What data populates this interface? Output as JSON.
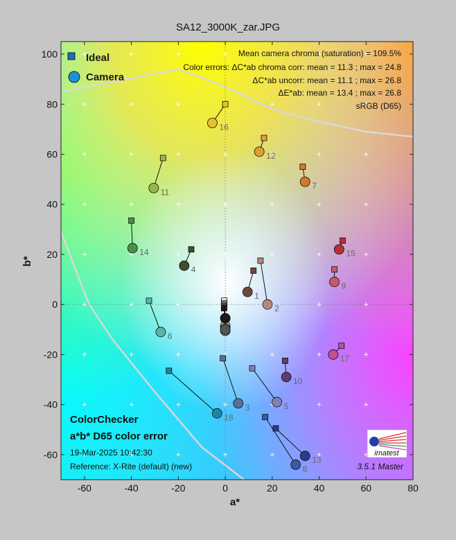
{
  "title": "SA12_3000K_zar.JPG",
  "chart_data": {
    "type": "scatter",
    "xlabel": "a*",
    "ylabel": "b*",
    "xlim": [
      -70,
      80
    ],
    "ylim": [
      -70,
      105
    ],
    "xticks": [
      -60,
      -40,
      -20,
      0,
      20,
      40,
      60,
      80
    ],
    "yticks": [
      -60,
      -40,
      -20,
      0,
      20,
      40,
      60,
      80,
      100
    ],
    "grid": true,
    "legend": [
      {
        "name": "Ideal",
        "marker": "square",
        "color": "#1f6fbf"
      },
      {
        "name": "Camera",
        "marker": "circle",
        "color": "#1f8fd8"
      }
    ],
    "legend_position": "top-left",
    "annotations": [
      "Mean camera chroma (saturation) = 109.5%",
      "Color errors: ΔC*ab chroma corr:  mean = 11.3 ;  max = 24.8",
      "ΔC*ab uncorr:  mean = 11.1 ;  max = 26.8",
      "ΔE*ab:  mean = 13.4 ;  max = 26.8",
      "sRGB (D65)"
    ],
    "chart_name": "ColorChecker",
    "subtitle": "a*b* D65 color error",
    "timestamp": "19-Mar-2025 10:42:30",
    "reference": "Reference: X-Rite (default) (new)",
    "version": "3.5.1  Master",
    "logo_text": "imatest",
    "patches": [
      {
        "id": "1",
        "ideal": [
          12,
          13.5
        ],
        "camera": [
          9.5,
          5
        ],
        "color": "#6b4a3c"
      },
      {
        "id": "2",
        "ideal": [
          15,
          17.5
        ],
        "camera": [
          18,
          0
        ],
        "color": "#b88878"
      },
      {
        "id": "3",
        "ideal": [
          -1,
          -21.5
        ],
        "camera": [
          5.5,
          -39.5
        ],
        "color": "#5a6f96"
      },
      {
        "id": "4",
        "ideal": [
          -14.5,
          22
        ],
        "camera": [
          -17.5,
          15.5
        ],
        "color": "#3e4f2c"
      },
      {
        "id": "5",
        "ideal": [
          11.5,
          -25.5
        ],
        "camera": [
          22,
          -39
        ],
        "color": "#8080b4"
      },
      {
        "id": "6",
        "ideal": [
          -32.5,
          1.5
        ],
        "camera": [
          -27.5,
          -11
        ],
        "color": "#5ab4a8"
      },
      {
        "id": "7",
        "ideal": [
          33,
          55
        ],
        "camera": [
          34,
          49
        ],
        "color": "#d07a2a"
      },
      {
        "id": "8",
        "ideal": [
          17,
          -45
        ],
        "camera": [
          30,
          -64
        ],
        "color": "#3a5aa8"
      },
      {
        "id": "9",
        "ideal": [
          46.5,
          14
        ],
        "camera": [
          46.5,
          9
        ],
        "color": "#c45a6a"
      },
      {
        "id": "10",
        "ideal": [
          25.5,
          -22.5
        ],
        "camera": [
          26,
          -29
        ],
        "color": "#5e3c6c"
      },
      {
        "id": "11",
        "ideal": [
          -26.5,
          58.5
        ],
        "camera": [
          -30.5,
          46.5
        ],
        "color": "#9ab648"
      },
      {
        "id": "12",
        "ideal": [
          16.5,
          66.5
        ],
        "camera": [
          14.5,
          61
        ],
        "color": "#e0a030"
      },
      {
        "id": "13",
        "ideal": [
          21.5,
          -49.5
        ],
        "camera": [
          34,
          -60.5
        ],
        "color": "#2a3c8c"
      },
      {
        "id": "14",
        "ideal": [
          -40,
          33.5
        ],
        "camera": [
          -39.5,
          22.5
        ],
        "color": "#4a9048"
      },
      {
        "id": "15",
        "ideal": [
          50,
          25.5
        ],
        "camera": [
          48.5,
          22
        ],
        "color": "#b43038"
      },
      {
        "id": "16",
        "ideal": [
          0,
          80
        ],
        "camera": [
          -5.5,
          72.5
        ],
        "color": "#e8c22a"
      },
      {
        "id": "17",
        "ideal": [
          49.5,
          -16.5
        ],
        "camera": [
          46,
          -20
        ],
        "color": "#c0508e"
      },
      {
        "id": "18",
        "ideal": [
          -24,
          -26.5
        ],
        "camera": [
          -3.5,
          -43.5
        ],
        "color": "#1e86a4"
      },
      {
        "id": "19",
        "ideal": [
          -0.5,
          1.5
        ],
        "camera": [
          0,
          -5.5
        ],
        "color": "#f2f2f2"
      },
      {
        "id": "20",
        "ideal": [
          -0.5,
          0.5
        ],
        "camera": [
          0,
          -8.5
        ],
        "color": "#c8c8c8"
      },
      {
        "id": "21",
        "ideal": [
          -0.5,
          0
        ],
        "camera": [
          0,
          -9.5
        ],
        "color": "#a0a0a0"
      },
      {
        "id": "22",
        "ideal": [
          -0.5,
          -0.5
        ],
        "camera": [
          0,
          -10.5
        ],
        "color": "#7a7a7a"
      },
      {
        "id": "23",
        "ideal": [
          -0.5,
          -1
        ],
        "camera": [
          0,
          -10
        ],
        "color": "#555555"
      },
      {
        "id": "24",
        "ideal": [
          -0.5,
          -1.5
        ],
        "camera": [
          0,
          -5.5
        ],
        "color": "#1a1a1a"
      }
    ],
    "gamut_boundary": [
      [
        -70,
        85
      ],
      [
        -20,
        94
      ],
      [
        0,
        87
      ],
      [
        20,
        78
      ],
      [
        40,
        73
      ],
      [
        60,
        69
      ],
      [
        80,
        67
      ]
    ],
    "gamut_boundary_left": [
      [
        -70,
        29
      ],
      [
        -58,
        0
      ],
      [
        -48,
        -14
      ],
      [
        -30,
        -35
      ],
      [
        -10,
        -57
      ],
      [
        8,
        -70
      ]
    ]
  }
}
